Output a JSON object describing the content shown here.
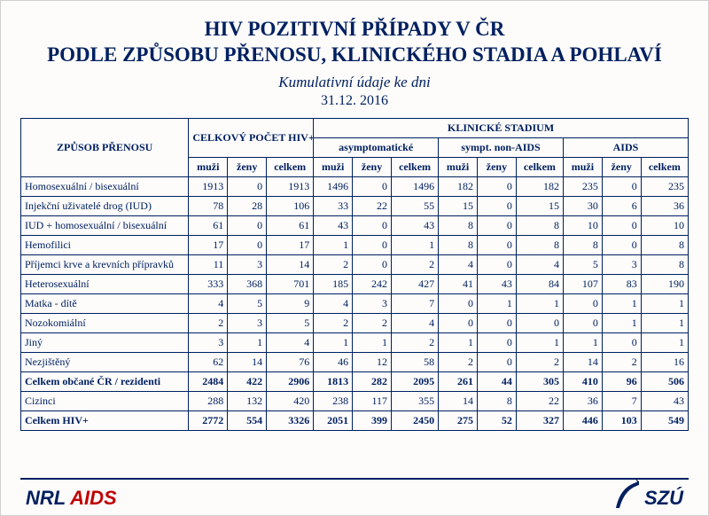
{
  "title_line1": "HIV POZITIVNÍ PŘÍPADY V ČR",
  "title_line2": "PODLE ZPŮSOBU PŘENOSU, KLINICKÉHO STADIA A POHLAVÍ",
  "subtitle": "Kumulativní údaje ke dni",
  "date": "31.12.  2016",
  "headers": {
    "transmission": "ZPŮSOB PŘENOSU",
    "total_hiv": "CELKOVÝ POČET HIV+",
    "clinical": "KLINICKÉ STADIUM",
    "asymp": "asymptomatické",
    "sympt": "sympt. non-AIDS",
    "aids": "AIDS",
    "men": "muži",
    "women": "ženy",
    "total": "celkem"
  },
  "rows": [
    {
      "label": "Homosexuální / bisexuální",
      "bold": false,
      "v": [
        1913,
        0,
        1913,
        1496,
        0,
        1496,
        182,
        0,
        182,
        235,
        0,
        235
      ]
    },
    {
      "label": "Injekční uživatelé drog  (IUD)",
      "bold": false,
      "v": [
        78,
        28,
        106,
        33,
        22,
        55,
        15,
        0,
        15,
        30,
        6,
        36
      ]
    },
    {
      "label": "IUD + homosexuální / bisexuální",
      "bold": false,
      "v": [
        61,
        0,
        61,
        43,
        0,
        43,
        8,
        0,
        8,
        10,
        0,
        10
      ]
    },
    {
      "label": "Hemofilici",
      "bold": false,
      "v": [
        17,
        0,
        17,
        1,
        0,
        1,
        8,
        0,
        8,
        8,
        0,
        8
      ]
    },
    {
      "label": "Příjemci krve a krevních přípravků",
      "bold": false,
      "v": [
        11,
        3,
        14,
        2,
        0,
        2,
        4,
        0,
        4,
        5,
        3,
        8
      ]
    },
    {
      "label": "Heterosexuální",
      "bold": false,
      "v": [
        333,
        368,
        701,
        185,
        242,
        427,
        41,
        43,
        84,
        107,
        83,
        190
      ]
    },
    {
      "label": "Matka - dítě",
      "bold": false,
      "v": [
        4,
        5,
        9,
        4,
        3,
        7,
        0,
        1,
        1,
        0,
        1,
        1
      ]
    },
    {
      "label": "Nozokomiální",
      "bold": false,
      "v": [
        2,
        3,
        5,
        2,
        2,
        4,
        0,
        0,
        0,
        0,
        1,
        1
      ]
    },
    {
      "label": "Jiný",
      "bold": false,
      "v": [
        3,
        1,
        4,
        1,
        1,
        2,
        1,
        0,
        1,
        1,
        0,
        1
      ]
    },
    {
      "label": "Nezjištěný",
      "bold": false,
      "v": [
        62,
        14,
        76,
        46,
        12,
        58,
        2,
        0,
        2,
        14,
        2,
        16
      ]
    },
    {
      "label": "Celkem občané ČR / rezidenti",
      "bold": true,
      "v": [
        2484,
        422,
        2906,
        1813,
        282,
        2095,
        261,
        44,
        305,
        410,
        96,
        506
      ]
    },
    {
      "label": "Cizinci",
      "bold": false,
      "v": [
        288,
        132,
        420,
        238,
        117,
        355,
        14,
        8,
        22,
        36,
        7,
        43
      ]
    },
    {
      "label": "Celkem HIV+",
      "bold": true,
      "v": [
        2772,
        554,
        3326,
        2051,
        399,
        2450,
        275,
        52,
        327,
        446,
        103,
        549
      ]
    }
  ],
  "footer": {
    "nrl": "NRL",
    "aids": "AIDS",
    "szu": "SZÚ"
  },
  "colors": {
    "text": "#002060",
    "accent_red": "#c00000"
  }
}
